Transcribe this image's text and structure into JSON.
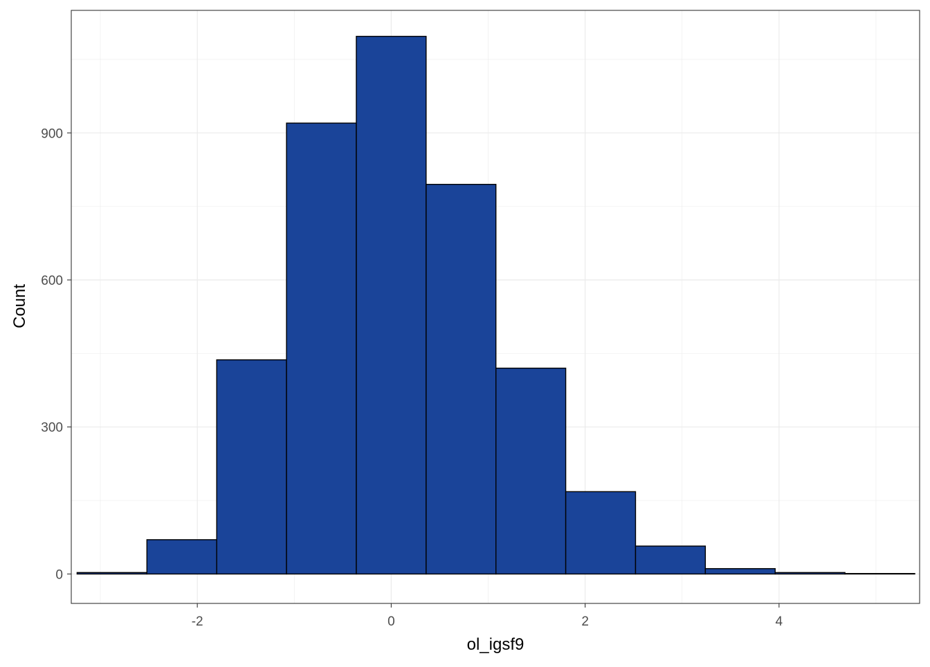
{
  "chart_data": {
    "type": "bar",
    "subtype": "histogram",
    "xlabel": "ol_igsf9",
    "ylabel": "Count",
    "xlim": [
      -3.3,
      5.45
    ],
    "ylim": [
      -60,
      1150
    ],
    "x_ticks": [
      -2,
      0,
      2,
      4
    ],
    "x_tick_labels": [
      "-2",
      "0",
      "2",
      "4"
    ],
    "y_ticks": [
      0,
      300,
      600,
      900
    ],
    "y_tick_labels": [
      "0",
      "300",
      "600",
      "900"
    ],
    "bins": [
      {
        "x0": -3.24,
        "x1": -2.52,
        "count": 3
      },
      {
        "x0": -2.52,
        "x1": -1.8,
        "count": 70
      },
      {
        "x0": -1.8,
        "x1": -1.08,
        "count": 437
      },
      {
        "x0": -1.08,
        "x1": -0.36,
        "count": 920
      },
      {
        "x0": -0.36,
        "x1": 0.36,
        "count": 1097
      },
      {
        "x0": 0.36,
        "x1": 1.08,
        "count": 795
      },
      {
        "x0": 1.08,
        "x1": 1.8,
        "count": 420
      },
      {
        "x0": 1.8,
        "x1": 2.52,
        "count": 168
      },
      {
        "x0": 2.52,
        "x1": 3.24,
        "count": 57
      },
      {
        "x0": 3.24,
        "x1": 3.96,
        "count": 11
      },
      {
        "x0": 3.96,
        "x1": 4.68,
        "count": 3
      },
      {
        "x0": 4.68,
        "x1": 5.4,
        "count": 1
      }
    ],
    "fill_color": "#1a4499",
    "border_color": "#000000",
    "grid": true,
    "grid_color": "#ebebeb",
    "legend": "none"
  }
}
